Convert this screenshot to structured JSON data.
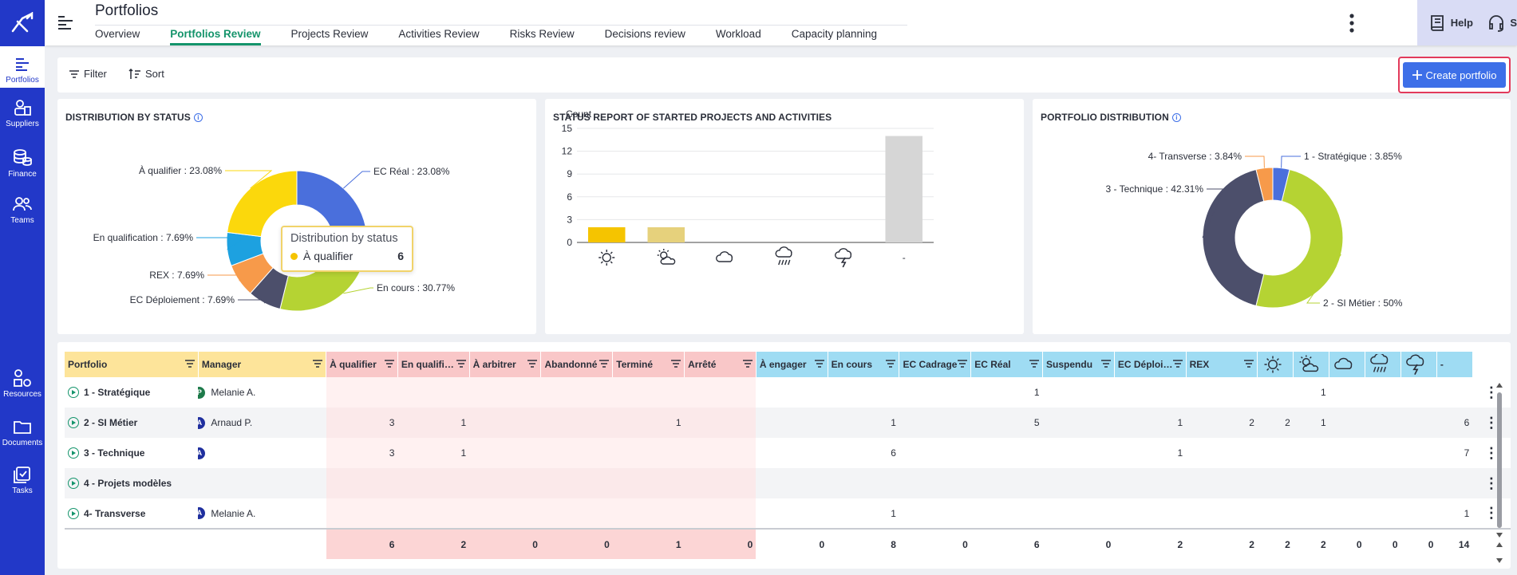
{
  "rail": {
    "items": [
      {
        "label": "Portfolios",
        "icon": "portfolio-icon",
        "active": true
      },
      {
        "label": "Suppliers",
        "icon": "suppliers-icon"
      },
      {
        "label": "Finance",
        "icon": "finance-icon"
      },
      {
        "label": "Teams",
        "icon": "teams-icon"
      },
      {
        "label": "Resources",
        "icon": "resources-icon"
      },
      {
        "label": "Documents",
        "icon": "documents-icon"
      },
      {
        "label": "Tasks",
        "icon": "tasks-icon"
      }
    ]
  },
  "header": {
    "title": "Portfolios",
    "tabs": [
      "Overview",
      "Portfolios Review",
      "Projects Review",
      "Activities Review",
      "Risks Review",
      "Decisions review",
      "Workload",
      "Capacity planning"
    ],
    "active_tab": "Portfolios Review",
    "help_label": "Help",
    "support_label": "Support"
  },
  "toolbar": {
    "filter_label": "Filter",
    "sort_label": "Sort",
    "create_label": "Create portfolio"
  },
  "colors": {
    "accent": "#2238c8",
    "active_tab": "#14946b",
    "create_button": "#3d6fe8",
    "highlight_border": "#e23a5b"
  },
  "tooltip": {
    "title": "Distribution by status",
    "label": "À qualifier",
    "value": "6"
  },
  "chart_data": [
    {
      "type": "pie",
      "title": "DISTRIBUTION BY STATUS",
      "variant": "donut",
      "slices": [
        {
          "label": "EC Réal : 23.08%",
          "value": 23.08,
          "color": "#4a6fdc"
        },
        {
          "label": "En cours : 30.77%",
          "value": 30.77,
          "color": "#b5d333"
        },
        {
          "label": "EC Déploiement : 7.69%",
          "value": 7.69,
          "color": "#4c4f6b"
        },
        {
          "label": "REX : 7.69%",
          "value": 7.69,
          "color": "#f79a4a"
        },
        {
          "label": "En qualification : 7.69%",
          "value": 7.69,
          "color": "#1da1e0"
        },
        {
          "label": "À qualifier : 23.08%",
          "value": 23.08,
          "color": "#fbd80c"
        }
      ]
    },
    {
      "type": "bar",
      "title": "STATUS REPORT OF STARTED PROJECTS AND ACTIVITIES",
      "ylabel": "Count",
      "yticks": [
        0,
        3,
        6,
        9,
        12,
        15
      ],
      "ylim": [
        0,
        15
      ],
      "categories": [
        "sunny-icon",
        "partly-cloudy-icon",
        "cloudy-icon",
        "rain-icon",
        "storm-icon",
        "-"
      ],
      "values": [
        2,
        2,
        0,
        0,
        0,
        14
      ],
      "colors": [
        "#f5c400",
        "#e6d17c",
        "#cccccc",
        "#cccccc",
        "#cccccc",
        "#d6d6d6"
      ],
      "grid": true
    },
    {
      "type": "pie",
      "title": "PORTFOLIO DISTRIBUTION",
      "variant": "donut",
      "slices": [
        {
          "label": "1 - Stratégique : 3.85%",
          "value": 3.85,
          "color": "#4a6fdc"
        },
        {
          "label": "2 - SI Métier : 50%",
          "value": 50,
          "color": "#b5d333"
        },
        {
          "label": "3 - Technique : 42.31%",
          "value": 42.31,
          "color": "#4c4f6b"
        },
        {
          "label": "4- Transverse : 3.84%",
          "value": 3.84,
          "color": "#f79a4a"
        }
      ]
    }
  ],
  "grid": {
    "columns": [
      {
        "label": "Portfolio",
        "group": "yellow"
      },
      {
        "label": "Manager",
        "group": "yellow"
      },
      {
        "label": "À qualifier",
        "group": "pink"
      },
      {
        "label": "En qualifi…",
        "group": "pink"
      },
      {
        "label": "À arbitrer",
        "group": "pink"
      },
      {
        "label": "Abandonné",
        "group": "pink"
      },
      {
        "label": "Terminé",
        "group": "pink"
      },
      {
        "label": "Arrêté",
        "group": "pink"
      },
      {
        "label": "À engager",
        "group": "blue"
      },
      {
        "label": "En cours",
        "group": "blue"
      },
      {
        "label": "EC Cadrage",
        "group": "blue"
      },
      {
        "label": "EC Réal",
        "group": "blue"
      },
      {
        "label": "Suspendu",
        "group": "blue"
      },
      {
        "label": "EC Déploi…",
        "group": "blue"
      },
      {
        "label": "REX",
        "group": "blue"
      },
      {
        "label": "",
        "group": "blue",
        "icon": "sunny-icon"
      },
      {
        "label": "",
        "group": "blue",
        "icon": "partly-cloudy-icon"
      },
      {
        "label": "",
        "group": "blue",
        "icon": "cloudy-icon"
      },
      {
        "label": "",
        "group": "blue",
        "icon": "rain-icon"
      },
      {
        "label": "",
        "group": "blue",
        "icon": "storm-icon"
      },
      {
        "label": "-",
        "group": "blue"
      }
    ],
    "rows": [
      {
        "portfolio": "1 - Stratégique",
        "badges": [
          "P"
        ],
        "manager": "Melanie A.",
        "cells": [
          "",
          "",
          "",
          "",
          "",
          "",
          "",
          "",
          "",
          "1",
          "",
          "",
          "",
          "",
          "1",
          "",
          "",
          "",
          ""
        ]
      },
      {
        "portfolio": "2 - SI Métier",
        "badges": [
          "P",
          "A"
        ],
        "manager": "Arnaud P.",
        "cells": [
          "3",
          "1",
          "",
          "",
          "1",
          "",
          "",
          "1",
          "",
          "5",
          "",
          "1",
          "2",
          "2",
          "1",
          "",
          "",
          "",
          "6"
        ]
      },
      {
        "portfolio": "3 - Technique",
        "badges": [
          "P",
          "A"
        ],
        "manager": "",
        "cells": [
          "3",
          "1",
          "",
          "",
          "",
          "",
          "",
          "6",
          "",
          "",
          "",
          "1",
          "",
          "",
          "",
          "",
          "",
          "",
          "7"
        ]
      },
      {
        "portfolio": "4 - Projets modèles",
        "badges": [],
        "manager": "",
        "cells": [
          "",
          "",
          "",
          "",
          "",
          "",
          "",
          "",
          "",
          "",
          "",
          "",
          "",
          "",
          "",
          "",
          "",
          "",
          ""
        ]
      },
      {
        "portfolio": "4- Transverse",
        "badges": [
          "A"
        ],
        "manager": "Melanie A.",
        "cells": [
          "",
          "",
          "",
          "",
          "",
          "",
          "",
          "1",
          "",
          "",
          "",
          "",
          "",
          "",
          "",
          "",
          "",
          "",
          "1"
        ]
      }
    ],
    "totals": [
      "6",
      "2",
      "0",
      "0",
      "1",
      "0",
      "0",
      "8",
      "0",
      "6",
      "0",
      "2",
      "2",
      "2",
      "2",
      "0",
      "0",
      "0",
      "14"
    ]
  }
}
